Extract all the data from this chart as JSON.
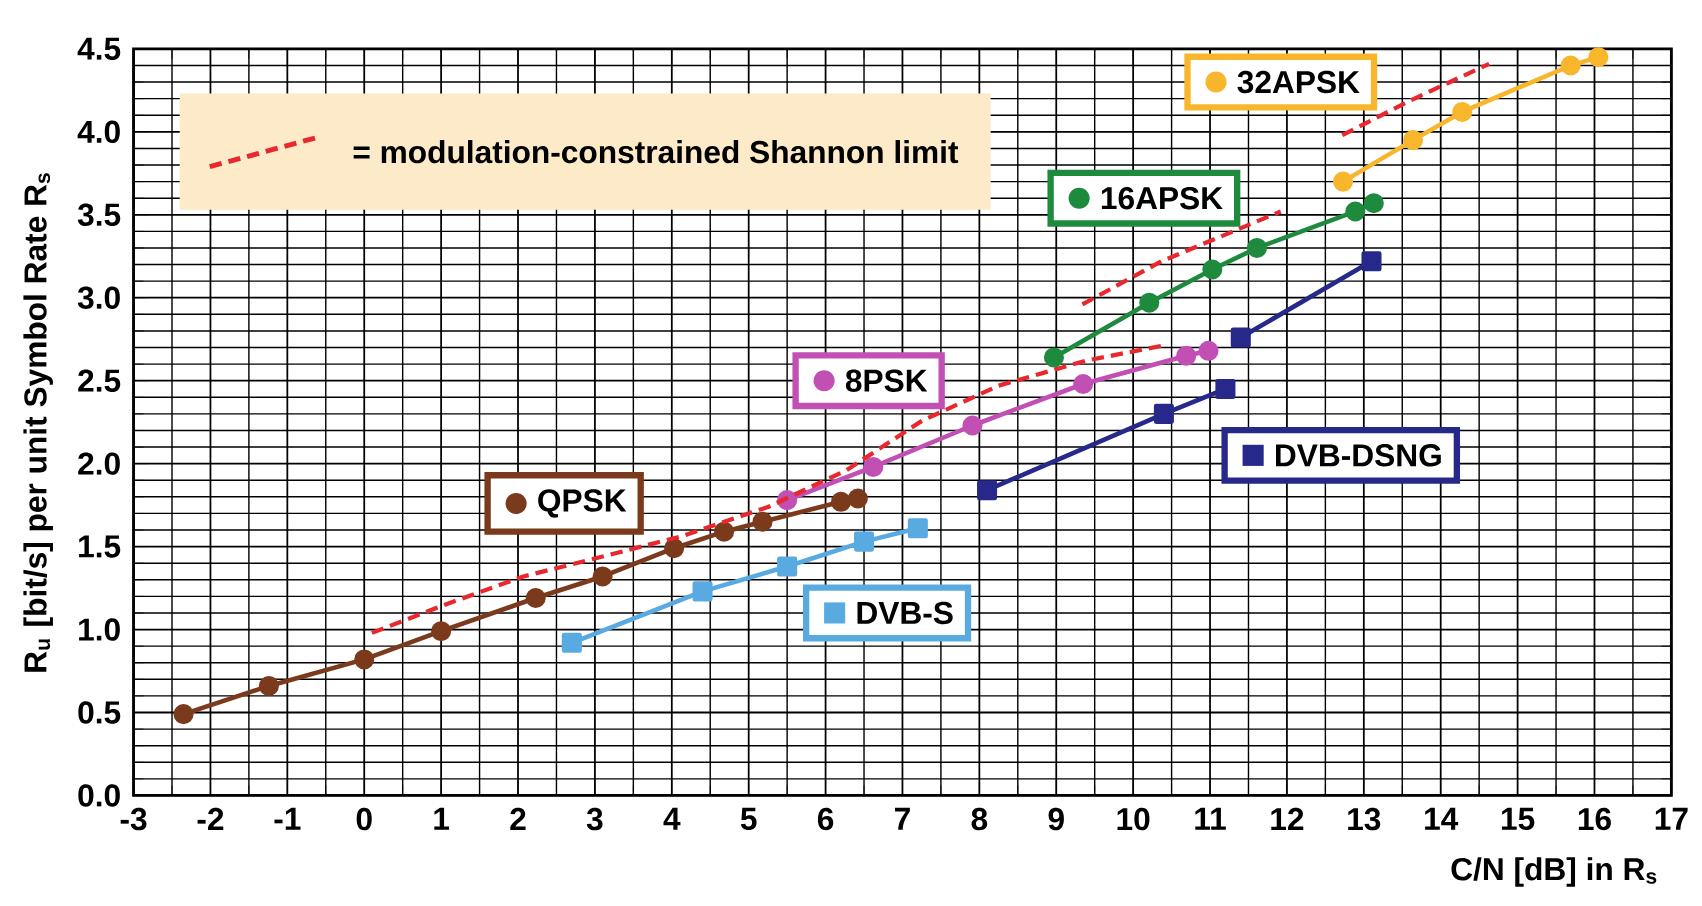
{
  "chart_data": {
    "type": "line",
    "xlabel": "C/N [dB] in R$_{s}$",
    "ylabel": "R$_{u}$ [bit/s] per unit Symbol Rate R$_{s}$",
    "xlim": [
      -3,
      17
    ],
    "ylim": [
      0,
      4.5
    ],
    "xticks": [
      -3,
      -2,
      -1,
      0,
      1,
      2,
      3,
      4,
      5,
      6,
      7,
      8,
      9,
      10,
      11,
      12,
      13,
      14,
      15,
      16,
      17
    ],
    "yticks": [
      {
        "value": 0,
        "label": "0.0"
      },
      0.5,
      {
        "value": 1,
        "label": "1.0"
      },
      1.5,
      {
        "value": 2,
        "label": "2.0"
      },
      2.5,
      {
        "value": 3,
        "label": "3.0"
      },
      3.5,
      {
        "value": 4,
        "label": "4.0"
      },
      4.5
    ],
    "grid": true,
    "legend": "top left",
    "series": [
      {
        "name": "QPSK",
        "color": "#7b3a1c",
        "marker": "circle",
        "line_style": "solid",
        "x": [
          -2.35,
          -1.24,
          0.0,
          1.0,
          2.23,
          3.1,
          4.03,
          4.68,
          5.18,
          6.2,
          6.42
        ],
        "values": [
          0.49,
          0.66,
          0.82,
          0.99,
          1.19,
          1.32,
          1.49,
          1.59,
          1.65,
          1.77,
          1.79
        ]
      },
      {
        "name": "8PSK",
        "color": "#c24fb4",
        "marker": "circle",
        "line_style": "solid",
        "x": [
          5.5,
          6.62,
          7.91,
          9.35,
          10.69,
          10.98
        ],
        "values": [
          1.78,
          1.98,
          2.23,
          2.48,
          2.65,
          2.68
        ]
      },
      {
        "name": "16APSK",
        "color": "#1e8a3e",
        "marker": "circle",
        "line_style": "solid",
        "x": [
          8.97,
          10.21,
          11.03,
          11.61,
          12.89,
          13.13
        ],
        "values": [
          2.64,
          2.97,
          3.17,
          3.3,
          3.52,
          3.57
        ]
      },
      {
        "name": "32APSK",
        "color": "#f8b62d",
        "marker": "circle",
        "line_style": "solid",
        "x": [
          12.73,
          13.64,
          14.28,
          15.69,
          16.05
        ],
        "values": [
          3.7,
          3.95,
          4.12,
          4.4,
          4.45
        ]
      },
      {
        "name": "DVB-S",
        "color": "#5aaae2",
        "marker": "square",
        "line_style": "solid",
        "x": [
          2.7,
          4.4,
          5.5,
          6.5,
          7.2
        ],
        "values": [
          0.92,
          1.23,
          1.38,
          1.53,
          1.61
        ]
      },
      {
        "name": "DVB-DSNG",
        "color": "#26288a",
        "marker": "square",
        "line_style": "solid",
        "x": [
          8.1,
          10.4,
          11.2
        ],
        "values": [
          1.84,
          2.3,
          2.45
        ]
      },
      {
        "color": "#26288a",
        "marker": "square",
        "line_style": "solid",
        "x": [
          11.4,
          13.1
        ],
        "values": [
          2.76,
          3.22
        ]
      },
      {
        "name": "= modulation-constrained Shannon limit",
        "color": "#e8282e",
        "marker": "none",
        "line_style": "dashed",
        "x": [
          0.1,
          1.05,
          2.07,
          3.1,
          4.11,
          5.26,
          6.27,
          7.26,
          8.25,
          9.38,
          10.37
        ],
        "values": [
          0.98,
          1.15,
          1.32,
          1.44,
          1.56,
          1.74,
          1.96,
          2.26,
          2.47,
          2.62,
          2.71
        ]
      },
      {
        "color": "#e8282e",
        "marker": "none",
        "line_style": "dashed",
        "x": [
          9.34,
          10.37,
          11.92
        ],
        "values": [
          2.96,
          3.22,
          3.52
        ]
      },
      {
        "color": "#e8282e",
        "marker": "none",
        "line_style": "dashed",
        "x": [
          12.72,
          13.61,
          14.63
        ],
        "values": [
          3.98,
          4.19,
          4.41
        ]
      }
    ]
  }
}
